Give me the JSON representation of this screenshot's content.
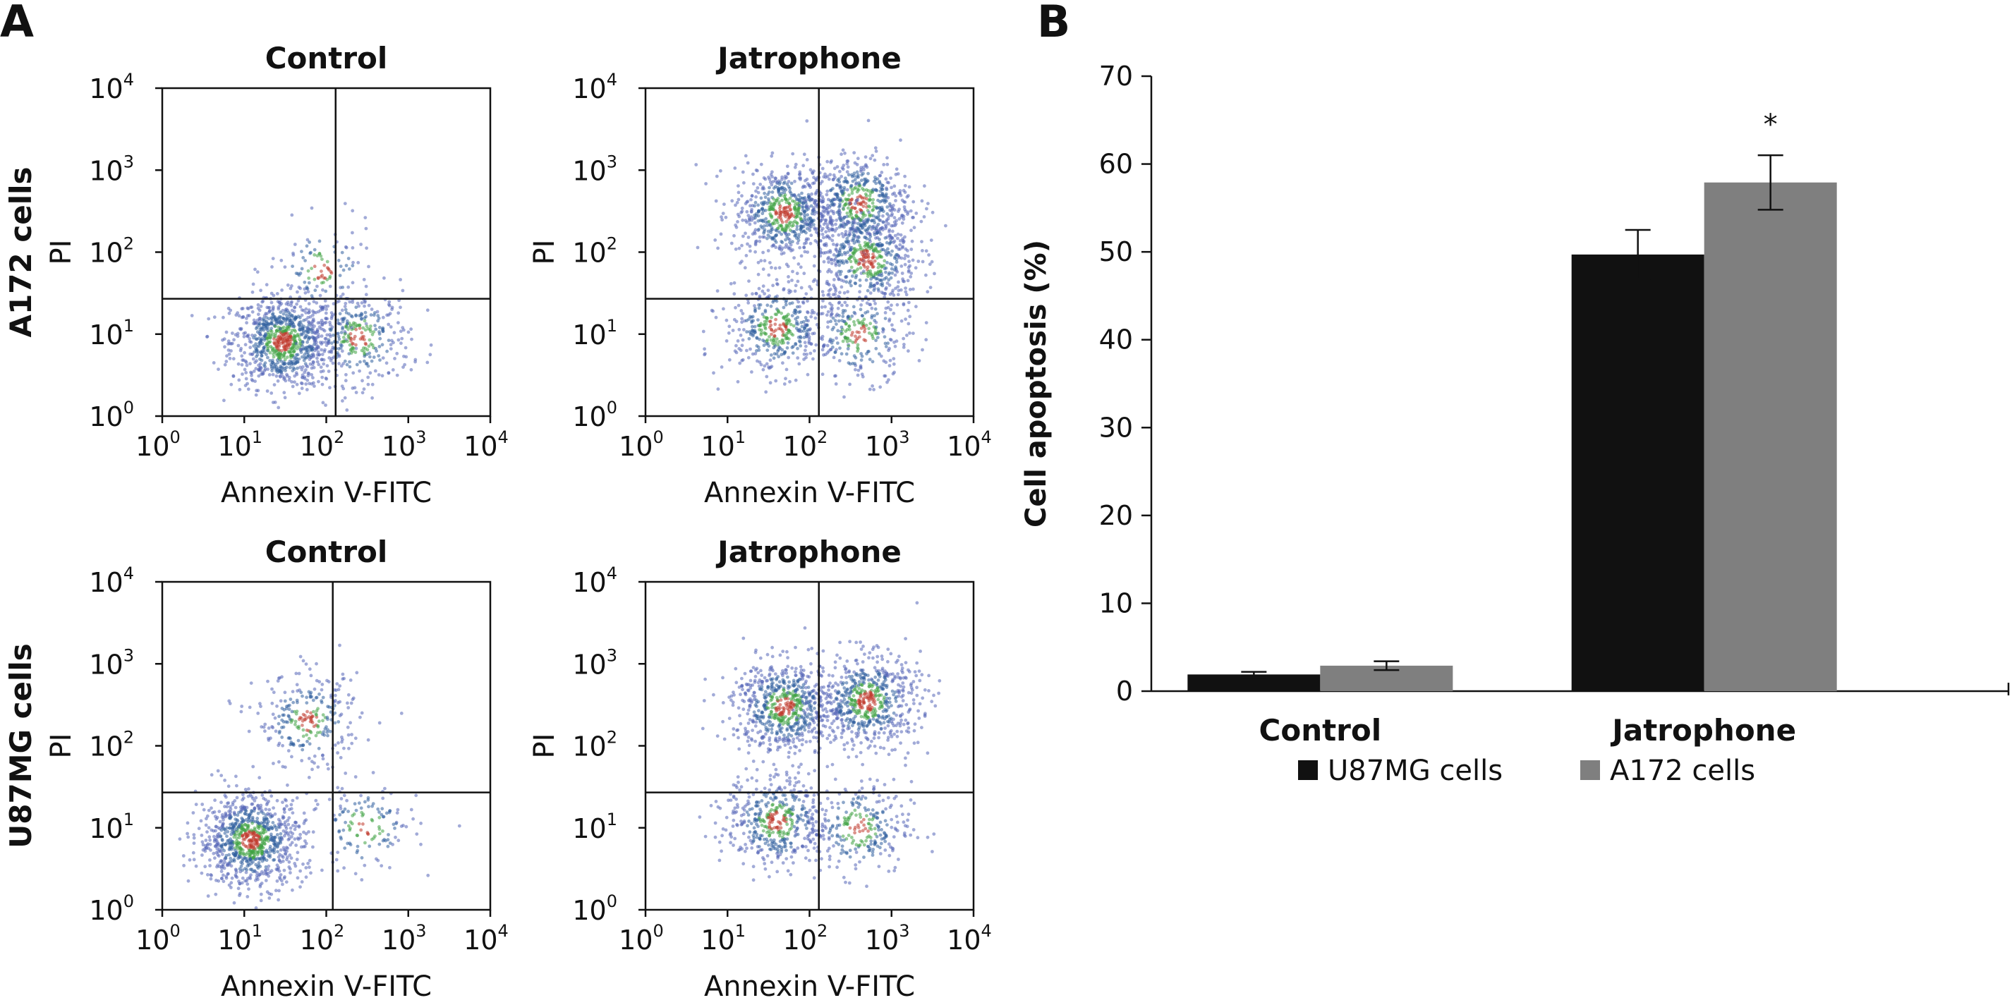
{
  "panel_a_label": "A",
  "panel_b_label": "B",
  "chart_data": [
    {
      "type": "scatter",
      "panel": "A",
      "title": "Control",
      "row_label": "A172 cells",
      "xlabel": "Annexin V-FITC",
      "ylabel": "PI",
      "xscale": "log",
      "yscale": "log",
      "xlim": [
        1,
        10000
      ],
      "ylim": [
        1,
        10000
      ],
      "x_tick_labels": [
        "10",
        "10",
        "10",
        "10",
        "10"
      ],
      "x_tick_exponents": [
        "0",
        "1",
        "2",
        "3",
        "4"
      ],
      "y_tick_labels": [
        "10",
        "10",
        "10",
        "10",
        "10"
      ],
      "y_tick_exponents": [
        "0",
        "1",
        "2",
        "3",
        "4"
      ],
      "gate_x": 130,
      "gate_y": 27,
      "clusters": [
        {
          "x": 30,
          "y": 8,
          "weight": 1.0
        },
        {
          "x": 250,
          "y": 9,
          "weight": 0.35
        },
        {
          "x": 90,
          "y": 60,
          "weight": 0.12
        }
      ]
    },
    {
      "type": "scatter",
      "panel": "A",
      "title": "Jatrophone",
      "row_label": "",
      "xlabel": "Annexin V-FITC",
      "ylabel": "PI",
      "xscale": "log",
      "yscale": "log",
      "xlim": [
        1,
        10000
      ],
      "ylim": [
        1,
        10000
      ],
      "x_tick_labels": [
        "10",
        "10",
        "10",
        "10",
        "10"
      ],
      "x_tick_exponents": [
        "0",
        "1",
        "2",
        "3",
        "4"
      ],
      "y_tick_labels": [
        "10",
        "10",
        "10",
        "10",
        "10"
      ],
      "y_tick_exponents": [
        "0",
        "1",
        "2",
        "3",
        "4"
      ],
      "gate_x": 130,
      "gate_y": 27,
      "clusters": [
        {
          "x": 50,
          "y": 300,
          "weight": 0.7
        },
        {
          "x": 400,
          "y": 400,
          "weight": 0.6
        },
        {
          "x": 500,
          "y": 80,
          "weight": 0.55
        },
        {
          "x": 40,
          "y": 12,
          "weight": 0.45
        },
        {
          "x": 400,
          "y": 10,
          "weight": 0.3
        }
      ]
    },
    {
      "type": "scatter",
      "panel": "A",
      "title": "Control",
      "row_label": "U87MG cells",
      "xlabel": "Annexin V-FITC",
      "ylabel": "PI",
      "xscale": "log",
      "yscale": "log",
      "xlim": [
        1,
        10000
      ],
      "ylim": [
        1,
        10000
      ],
      "x_tick_labels": [
        "10",
        "10",
        "10",
        "10",
        "10"
      ],
      "x_tick_exponents": [
        "0",
        "1",
        "2",
        "3",
        "4"
      ],
      "y_tick_labels": [
        "10",
        "10",
        "10",
        "10",
        "10"
      ],
      "y_tick_exponents": [
        "0",
        "1",
        "2",
        "3",
        "4"
      ],
      "gate_x": 120,
      "gate_y": 27,
      "clusters": [
        {
          "x": 12,
          "y": 7,
          "weight": 1.0
        },
        {
          "x": 60,
          "y": 200,
          "weight": 0.3
        },
        {
          "x": 300,
          "y": 10,
          "weight": 0.15
        }
      ]
    },
    {
      "type": "scatter",
      "panel": "A",
      "title": "Jatrophone",
      "row_label": "",
      "xlabel": "Annexin V-FITC",
      "ylabel": "PI",
      "xscale": "log",
      "yscale": "log",
      "xlim": [
        1,
        10000
      ],
      "ylim": [
        1,
        10000
      ],
      "x_tick_labels": [
        "10",
        "10",
        "10",
        "10",
        "10"
      ],
      "x_tick_exponents": [
        "0",
        "1",
        "2",
        "3",
        "4"
      ],
      "y_tick_labels": [
        "10",
        "10",
        "10",
        "10",
        "10"
      ],
      "y_tick_exponents": [
        "0",
        "1",
        "2",
        "3",
        "4"
      ],
      "gate_x": 130,
      "gate_y": 27,
      "clusters": [
        {
          "x": 50,
          "y": 300,
          "weight": 0.75
        },
        {
          "x": 500,
          "y": 350,
          "weight": 0.7
        },
        {
          "x": 40,
          "y": 12,
          "weight": 0.5
        },
        {
          "x": 400,
          "y": 10,
          "weight": 0.3
        }
      ]
    },
    {
      "type": "bar",
      "panel": "B",
      "categories": [
        "Control",
        "Jatrophone"
      ],
      "series": [
        {
          "name": "U87MG cells",
          "color": "#111111",
          "values": [
            1.9,
            49.7
          ],
          "errors": [
            0.3,
            2.8
          ]
        },
        {
          "name": "A172 cells",
          "color": "#7f7f7f",
          "values": [
            2.9,
            57.9
          ],
          "errors": [
            0.5,
            3.1
          ]
        }
      ],
      "xlabel": "",
      "ylabel": "Cell apoptosis (%)",
      "ylim": [
        0,
        70
      ],
      "yticks": [
        0,
        10,
        20,
        30,
        40,
        50,
        60,
        70
      ],
      "annotations": [
        {
          "category": "Jatrophone",
          "text": "*"
        }
      ],
      "legend_position": "bottom",
      "grid": false
    }
  ]
}
